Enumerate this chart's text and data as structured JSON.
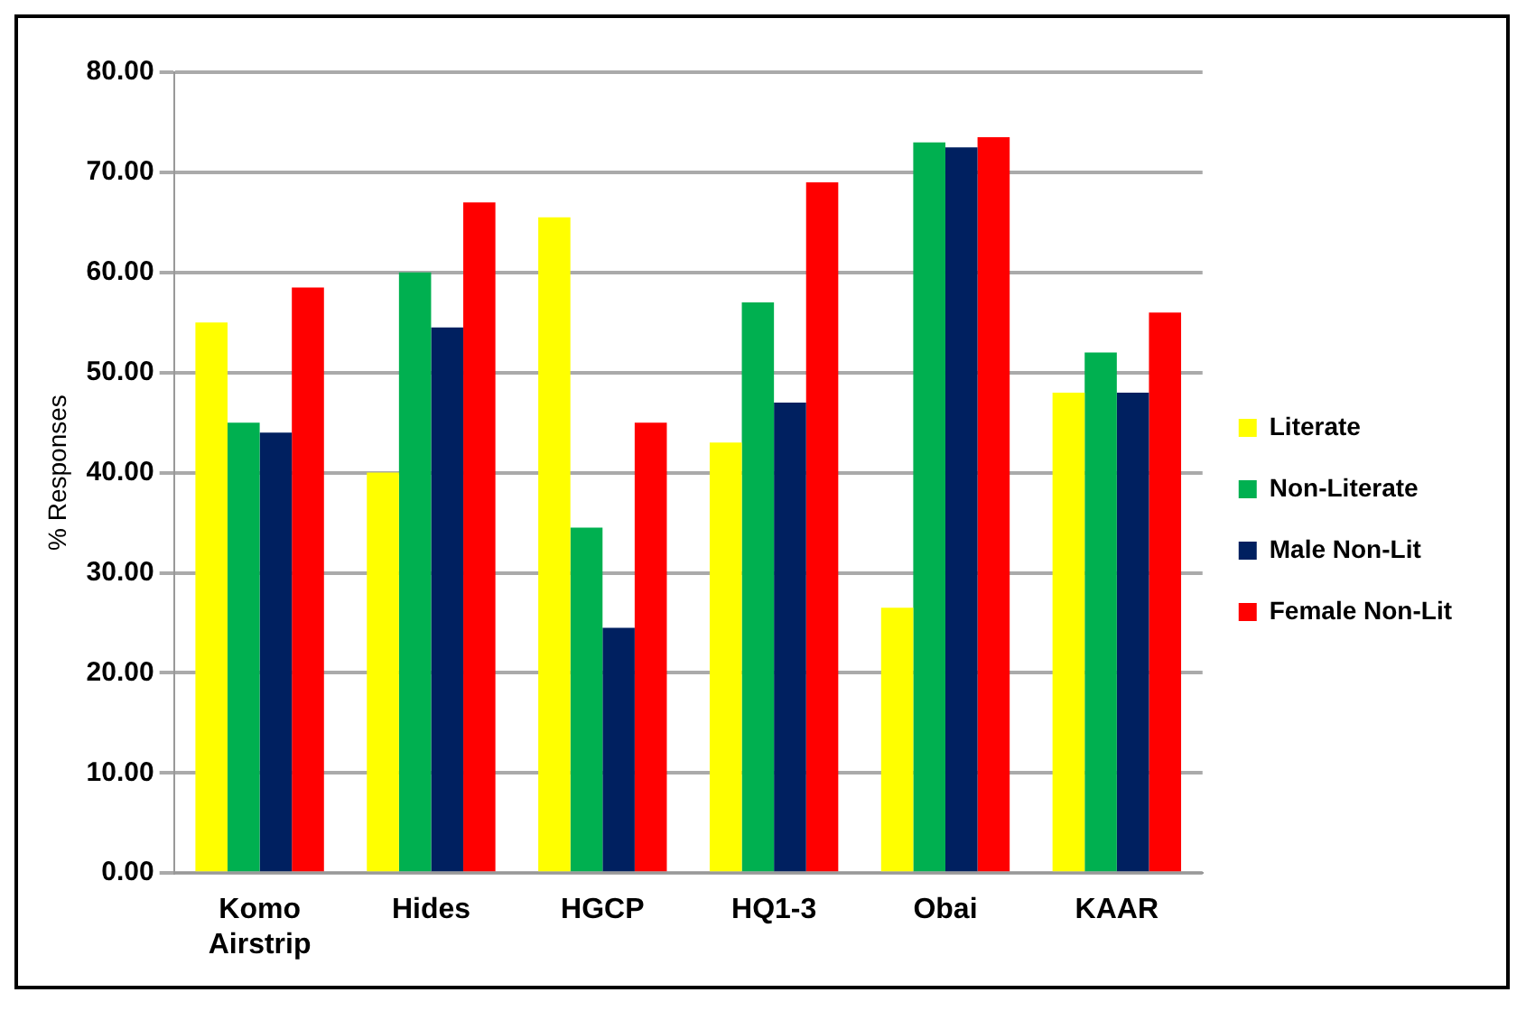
{
  "chart_data": {
    "type": "bar",
    "ylabel": "% Responses",
    "categories": [
      "Komo Airstrip",
      "Hides",
      "HGCP",
      "HQ1-3",
      "Obai",
      "KAAR"
    ],
    "series": [
      {
        "name": "Literate",
        "color": "#ffff00",
        "values": [
          55,
          40,
          65.5,
          43,
          26.5,
          48
        ]
      },
      {
        "name": "Non-Literate",
        "color": "#00b050",
        "values": [
          45,
          60,
          34.5,
          57,
          73,
          52
        ]
      },
      {
        "name": "Male Non-Lit",
        "color": "#002060",
        "values": [
          44,
          54.5,
          24.5,
          47,
          72.5,
          48
        ]
      },
      {
        "name": "Female Non-Lit",
        "color": "#ff0000",
        "values": [
          58.5,
          67,
          45,
          69,
          73.5,
          56
        ]
      }
    ],
    "ylim": [
      0,
      80
    ],
    "yticks": [
      {
        "value": 0,
        "label": "0.00"
      },
      {
        "value": 10,
        "label": "10.00"
      },
      {
        "value": 20,
        "label": "20.00"
      },
      {
        "value": 30,
        "label": "30.00"
      },
      {
        "value": 40,
        "label": "40.00"
      },
      {
        "value": 50,
        "label": "50.00"
      },
      {
        "value": 60,
        "label": "60.00"
      },
      {
        "value": 70,
        "label": "70.00"
      },
      {
        "value": 80,
        "label": "80.00"
      }
    ],
    "grid": "y",
    "legend": "right"
  }
}
